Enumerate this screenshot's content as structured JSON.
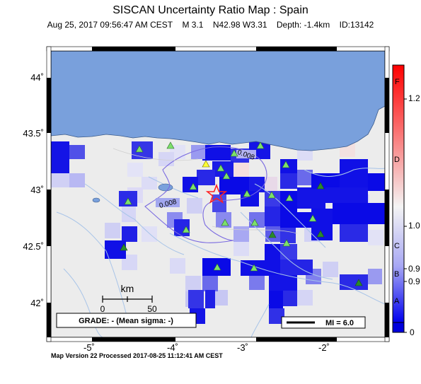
{
  "title": "SISCAN Uncertainty Ratio Map : Spain",
  "subtitle": {
    "datetime": "Aug 25, 2017 09:56:47 AM CEST",
    "magnitude": "M 3.1",
    "location": "N42.98 W3.31",
    "depth": "Depth: -1.4km",
    "id": "ID:13142"
  },
  "axes": {
    "y_ticks": [
      "44",
      "43.5",
      "43",
      "42.5",
      "42"
    ],
    "x_ticks": [
      "-5",
      "-4",
      "-3",
      "-2"
    ]
  },
  "scale_bar": {
    "unit": "km",
    "start": "0",
    "end": "50"
  },
  "contour_labels": [
    "0.008",
    "0.008"
  ],
  "grade_box": "GRADE: - (Mean sigma: -)",
  "mi_legend": "MI = 6.0",
  "colorbar": {
    "left_labels": [
      "F",
      "D",
      "C",
      "B",
      "A"
    ],
    "right_labels": [
      "1.2",
      "1.0",
      "0.9",
      "0.9",
      "0"
    ],
    "colors": {
      "top": "#ff0000",
      "mid": "#f4f4f4",
      "bottom": "#0000ee"
    }
  },
  "footer": "Map Version 22 Processed 2017-08-25 11:12:41 AM CEST",
  "colors": {
    "sea": "#79a0dc",
    "land": "#ececec",
    "grid_strong": "#1414e6",
    "station_light": "#7de06a",
    "station_dark": "#2a8a2a",
    "station_yellow": "#ffff33",
    "epicenter": "#ff2222"
  }
}
